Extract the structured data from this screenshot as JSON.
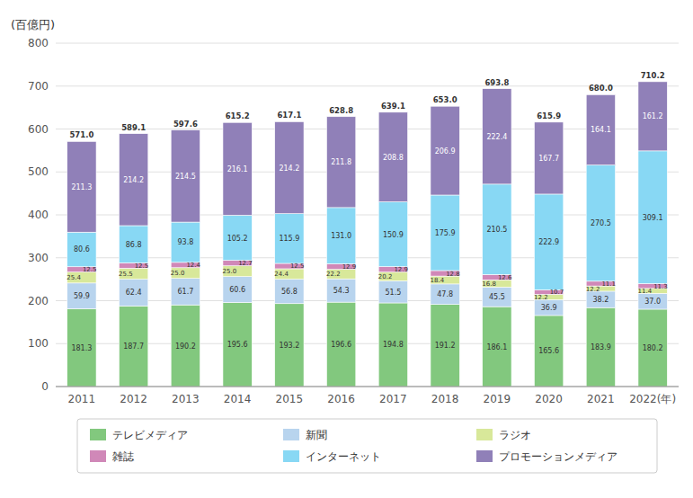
{
  "chart_data": {
    "type": "bar",
    "stacked": true,
    "data_labels": true,
    "grid": true,
    "legend": "bottom",
    "y_label": "(百億円)",
    "categories": [
      "2011",
      "2012",
      "2013",
      "2014",
      "2015",
      "2016",
      "2017",
      "2018",
      "2019",
      "2020",
      "2021",
      "2022(年)"
    ],
    "ylim": [
      0,
      800
    ],
    "yticks": [
      0,
      100,
      200,
      300,
      400,
      500,
      600,
      700,
      800
    ],
    "series": [
      {
        "name": "テレビメディア",
        "color": "#82c87e",
        "values": [
          181.3,
          187.7,
          190.2,
          195.6,
          193.2,
          196.6,
          194.8,
          191.2,
          186.1,
          165.6,
          183.9,
          180.2
        ],
        "value_labels": [
          "181.3",
          "187.7",
          "190.2",
          "195.6",
          "193.2",
          "196.6",
          "194.8",
          "191.2",
          "186.1",
          "165.6",
          "183.9",
          "180.2"
        ]
      },
      {
        "name": "新聞",
        "color": "#b8d4ee",
        "values": [
          59.9,
          62.4,
          61.7,
          60.6,
          56.8,
          54.3,
          51.5,
          47.8,
          45.5,
          36.9,
          38.2,
          37.0
        ],
        "value_labels": [
          "59.9",
          "62.4",
          "61.7",
          "60.6",
          "56.8",
          "54.3",
          "51.5",
          "47.8",
          "45.5",
          "36.9",
          "38.2",
          "37.0"
        ]
      },
      {
        "name": "ラジオ",
        "color": "#d8e89a",
        "values": [
          25.4,
          25.5,
          25.0,
          25.0,
          24.4,
          22.2,
          20.2,
          18.4,
          16.8,
          12.2,
          12.2,
          11.4
        ],
        "value_labels": [
          "25.4",
          "25.5",
          "25.0",
          "25.0",
          "24.4",
          "22.2",
          "20.2",
          "18.4",
          "16.8",
          "12.2",
          "12.2",
          "11.4"
        ]
      },
      {
        "name": "雑誌",
        "color": "#d088b8",
        "values": [
          12.5,
          12.5,
          12.4,
          12.7,
          12.5,
          12.9,
          12.9,
          12.8,
          12.6,
          10.7,
          11.1,
          11.3
        ],
        "value_labels": [
          "12.5",
          "12.5",
          "12.4",
          "12.7",
          "12.5",
          "12.9",
          "12.9",
          "12.8",
          "12.6",
          "10.7",
          "11.1",
          "11.3"
        ]
      },
      {
        "name": "インターネット",
        "color": "#88d8f4",
        "values": [
          80.6,
          86.8,
          93.8,
          105.2,
          115.9,
          131.0,
          150.9,
          175.9,
          210.5,
          222.9,
          270.5,
          309.1
        ],
        "value_labels": [
          "80.6",
          "86.8",
          "93.8",
          "105.2",
          "115.9",
          "131.0",
          "150.9",
          "175.9",
          "210.5",
          "222.9",
          "270.5",
          "309.1"
        ]
      },
      {
        "name": "プロモーションメディア",
        "color": "#9080b8",
        "values": [
          211.3,
          214.2,
          214.5,
          216.1,
          214.2,
          211.8,
          208.8,
          206.9,
          222.4,
          167.7,
          164.1,
          161.2
        ],
        "value_labels": [
          "211.3",
          "214.2",
          "214.5",
          "216.1",
          "214.2",
          "211.8",
          "208.8",
          "206.9",
          "222.4",
          "167.7",
          "164.1",
          "161.2"
        ]
      }
    ],
    "totals": [
      571.0,
      589.1,
      597.6,
      615.2,
      617.1,
      628.8,
      639.1,
      653.0,
      693.8,
      615.9,
      680.0,
      710.2
    ],
    "total_labels": [
      "571.0",
      "589.1",
      "597.6",
      "615.2",
      "617.1",
      "628.8",
      "639.1",
      "653.0",
      "693.8",
      "615.9",
      "680.0",
      "710.2"
    ]
  }
}
